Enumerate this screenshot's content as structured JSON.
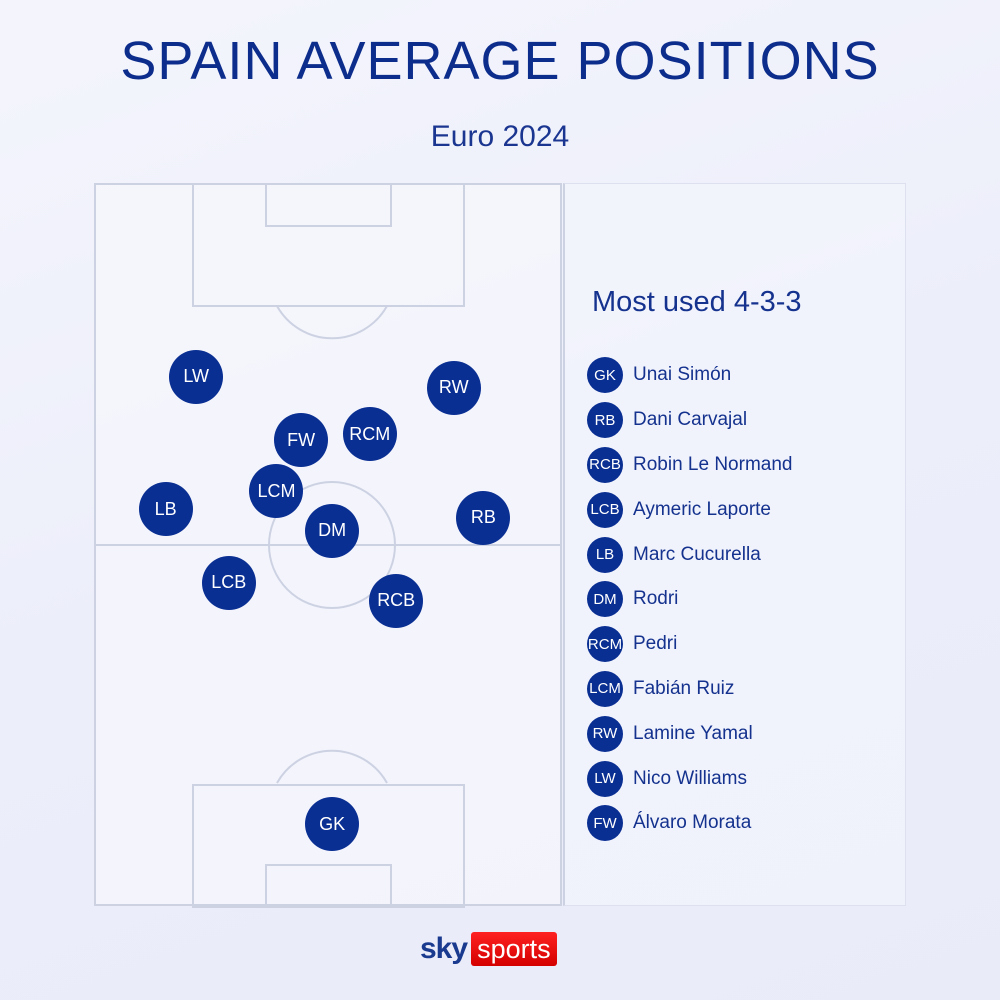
{
  "header": {
    "title": "SPAIN AVERAGE POSITIONS",
    "subtitle": "Euro 2024"
  },
  "panel": {
    "title": "Most used 4-3-3"
  },
  "players": [
    {
      "pos": "GK",
      "name": "Unai Simón",
      "x": 50.9,
      "y": 88.9
    },
    {
      "pos": "RB",
      "name": "Dani Carvajal",
      "x": 83.5,
      "y": 46.3
    },
    {
      "pos": "RCB",
      "name": "Robin Le Normand",
      "x": 64.7,
      "y": 57.8
    },
    {
      "pos": "LCB",
      "name": "Aymeric Laporte",
      "x": 28.6,
      "y": 55.3
    },
    {
      "pos": "LB",
      "name": "Marc Cucurella",
      "x": 15.0,
      "y": 45.1
    },
    {
      "pos": "DM",
      "name": "Rodri",
      "x": 50.9,
      "y": 48.1
    },
    {
      "pos": "RCM",
      "name": "Pedri",
      "x": 59.0,
      "y": 34.7
    },
    {
      "pos": "LCM",
      "name": "Fabián Ruiz",
      "x": 38.9,
      "y": 42.6
    },
    {
      "pos": "RW",
      "name": "Lamine Yamal",
      "x": 77.1,
      "y": 28.2
    },
    {
      "pos": "LW",
      "name": "Nico Williams",
      "x": 21.6,
      "y": 26.7
    },
    {
      "pos": "FW",
      "name": "Álvaro Morata",
      "x": 44.2,
      "y": 35.5
    }
  ],
  "logo": {
    "sky": "sky",
    "sports": "sports"
  },
  "colors": {
    "primary": "#0a2f93",
    "brand_red": "#e10000"
  }
}
